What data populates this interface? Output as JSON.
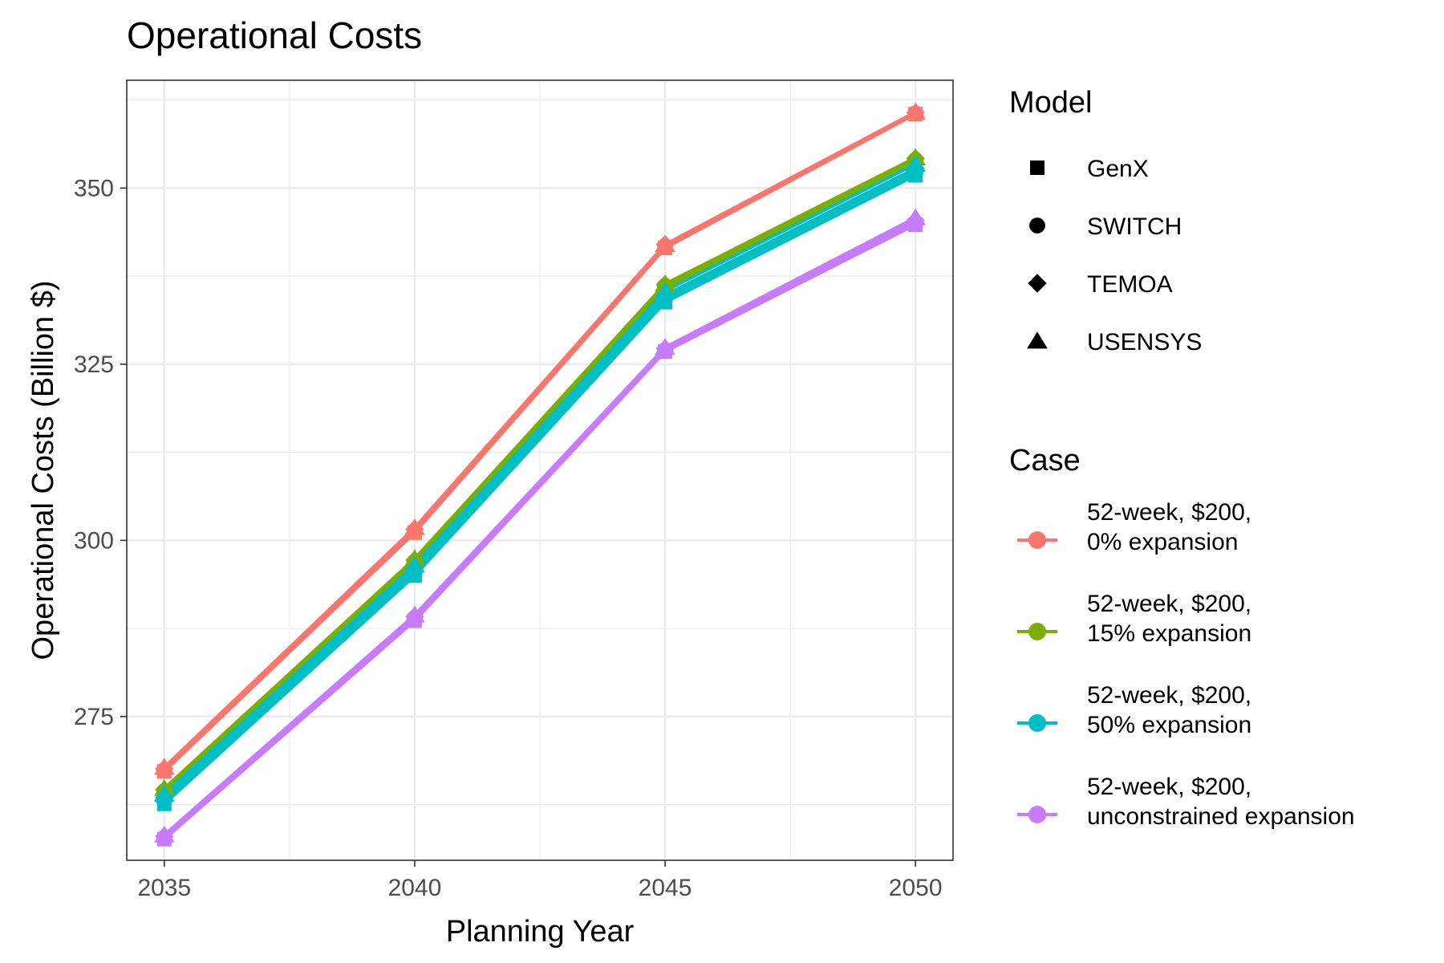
{
  "chart_data": {
    "type": "line",
    "title": "Operational Costs",
    "xlabel": "Planning Year",
    "ylabel": "Operational Costs (Billion $)",
    "x": [
      2035,
      2040,
      2045,
      2050
    ],
    "xticks": [
      "2035",
      "2040",
      "2045",
      "2050"
    ],
    "yticks": [
      275,
      300,
      325,
      350
    ],
    "xlim": [
      2034.25,
      2050.75
    ],
    "ylim": [
      254.6,
      365.3
    ],
    "grid": true,
    "legend_placement": "right",
    "legend": {
      "model_title": "Model",
      "case_title": "Case",
      "models": [
        {
          "name": "GenX",
          "shape": "square"
        },
        {
          "name": "SWITCH",
          "shape": "circle"
        },
        {
          "name": "TEMOA",
          "shape": "diamond"
        },
        {
          "name": "USENSYS",
          "shape": "triangle"
        }
      ]
    },
    "series": [
      {
        "case_line1": "52-week, $200,",
        "case_line2": "0% expansion",
        "color": "#F8766D",
        "models": {
          "GenX": [
            267.2,
            301.1,
            341.5,
            360.5
          ],
          "SWITCH": [
            267.4,
            301.4,
            341.8,
            360.6
          ],
          "TEMOA": [
            267.6,
            301.6,
            342.0,
            360.7
          ],
          "USENSYS": [
            267.8,
            301.8,
            342.0,
            360.8
          ]
        }
      },
      {
        "case_line1": "52-week, $200,",
        "case_line2": "15% expansion",
        "color": "#7CAE00",
        "models": {
          "GenX": [
            264.0,
            296.5,
            335.7,
            353.5
          ],
          "SWITCH": [
            264.4,
            297.0,
            336.1,
            354.0
          ],
          "TEMOA": [
            264.6,
            297.2,
            336.3,
            354.2
          ],
          "USENSYS": [
            264.8,
            297.4,
            336.4,
            354.3
          ]
        }
      },
      {
        "case_line1": "52-week, $200,",
        "case_line2": "50% expansion",
        "color": "#00BFC4",
        "models": {
          "GenX": [
            262.6,
            295.0,
            333.8,
            351.8
          ],
          "SWITCH": [
            263.0,
            295.5,
            334.3,
            352.3
          ],
          "TEMOA": [
            263.5,
            296.0,
            334.8,
            352.8
          ],
          "USENSYS": [
            264.0,
            296.5,
            335.4,
            353.4
          ]
        }
      },
      {
        "case_line1": "52-week, $200,",
        "case_line2": "unconstrained expansion",
        "color": "#C77CFF",
        "models": {
          "GenX": [
            257.6,
            288.6,
            326.8,
            344.8
          ],
          "SWITCH": [
            257.8,
            289.0,
            327.0,
            345.0
          ],
          "TEMOA": [
            258.0,
            289.2,
            327.2,
            345.4
          ],
          "USENSYS": [
            258.2,
            289.4,
            327.4,
            345.8
          ]
        }
      }
    ]
  }
}
